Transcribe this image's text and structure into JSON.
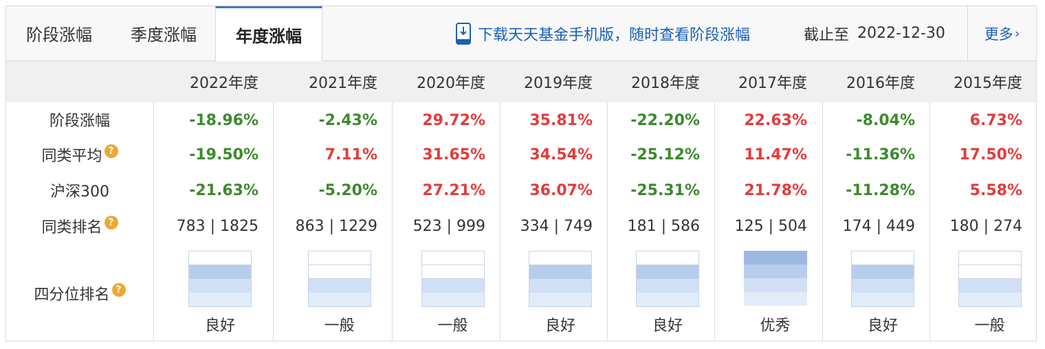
{
  "tabs": [
    {
      "label": "阶段涨幅",
      "active": false
    },
    {
      "label": "季度涨幅",
      "active": false
    },
    {
      "label": "年度涨幅",
      "active": true
    }
  ],
  "download_text": "下载天天基金手机版，随时查看阶段涨幅",
  "cutoff_label": "截止至",
  "cutoff_date": "2022-12-30",
  "more_label": "更多",
  "years": [
    "2022年度",
    "2021年度",
    "2020年度",
    "2019年度",
    "2018年度",
    "2017年度",
    "2016年度",
    "2015年度"
  ],
  "row_labels": {
    "stage": "阶段涨幅",
    "peer_avg": "同类平均",
    "hs300": "沪深300",
    "peer_rank": "同类排名",
    "quartile": "四分位排名"
  },
  "stage": [
    "-18.96%",
    "-2.43%",
    "29.72%",
    "35.81%",
    "-22.20%",
    "22.63%",
    "-8.04%",
    "6.73%"
  ],
  "peer_avg": [
    "-19.50%",
    "7.11%",
    "31.65%",
    "34.54%",
    "-25.12%",
    "11.47%",
    "-11.36%",
    "17.50%"
  ],
  "hs300": [
    "-21.63%",
    "-5.20%",
    "27.21%",
    "36.07%",
    "-25.31%",
    "21.78%",
    "-11.28%",
    "5.58%"
  ],
  "peer_rank": [
    "783 | 1825",
    "863 | 1229",
    "523 | 999",
    "334 | 749",
    "181 | 586",
    "125 | 504",
    "174 | 449",
    "180 | 274"
  ],
  "quartile_labels": [
    "良好",
    "一般",
    "一般",
    "良好",
    "良好",
    "优秀",
    "良好",
    "一般"
  ],
  "quartile_level": [
    3,
    2,
    2,
    3,
    3,
    4,
    3,
    2
  ],
  "colors": {
    "up": "#e23c3c",
    "down": "#3c8a2c",
    "link": "#1a5fb4",
    "tab_active_border": "#3a78c3",
    "quartile_fill": [
      "#9db8e0",
      "#b8cdec",
      "#d0dff5",
      "#e2ecf9"
    ]
  },
  "icons": {
    "download": "phone-download-icon",
    "help": "question-icon",
    "more": "chevron-right-icon"
  }
}
